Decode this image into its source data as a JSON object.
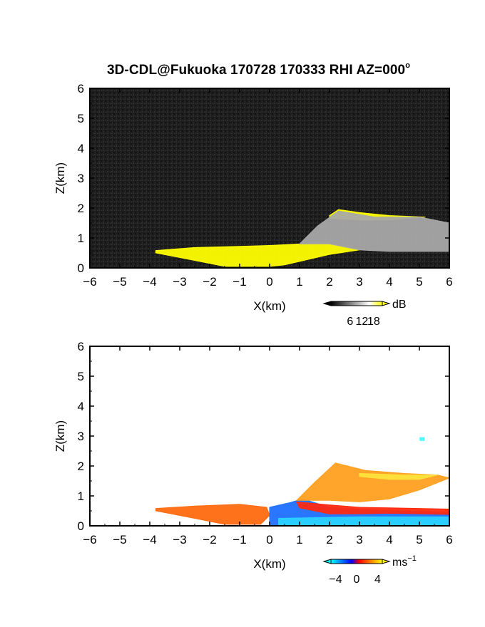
{
  "title": {
    "text": "3D-CDL@Fukuoka 170728 170333 RHI AZ=000",
    "degree_mark": "o"
  },
  "chart_data": [
    {
      "type": "heatmap",
      "panel": "top",
      "quantity": "backscatter intensity",
      "xlabel": "X(km)",
      "ylabel": "Z(km)",
      "xlim": [
        -6,
        6
      ],
      "ylim": [
        0,
        6
      ],
      "x_ticks": [
        -6,
        -5,
        -4,
        -3,
        -2,
        -1,
        0,
        1,
        2,
        3,
        4,
        5,
        6
      ],
      "y_ticks": [
        0,
        1,
        2,
        3,
        4,
        5,
        6
      ],
      "grid": false,
      "background_color": "#1c1c1c",
      "colorbar": {
        "unit": "dB",
        "ticks": [
          6,
          12,
          18
        ],
        "colors": [
          "#000000",
          "#ffffff",
          "#ffff00"
        ]
      },
      "regions": [
        {
          "name": "yellow-strong-echo",
          "color": "#ffff00",
          "polygon_km": [
            [
              -3.8,
              0.58
            ],
            [
              -2.5,
              0.68
            ],
            [
              -1,
              0.72
            ],
            [
              0,
              0.75
            ],
            [
              1,
              0.8
            ],
            [
              2,
              0.8
            ],
            [
              3,
              0.6
            ],
            [
              2,
              0.45
            ],
            [
              0.5,
              0.1
            ],
            [
              0,
              0.05
            ],
            [
              -1.5,
              0.05
            ],
            [
              -2.5,
              0.25
            ],
            [
              -3.8,
              0.5
            ]
          ]
        },
        {
          "name": "yellow-elevated-layer",
          "color": "#ffff00",
          "polygon_km": [
            [
              2,
              1.75
            ],
            [
              2.3,
              1.95
            ],
            [
              3,
              1.85
            ],
            [
              4,
              1.75
            ],
            [
              5.2,
              1.7
            ],
            [
              4,
              1.6
            ],
            [
              3,
              1.6
            ],
            [
              2,
              1.65
            ]
          ]
        },
        {
          "name": "grey-elevated-plume",
          "color": "#a8a8a8",
          "polygon_km": [
            [
              1,
              0.8
            ],
            [
              1.6,
              1.4
            ],
            [
              2.3,
              1.9
            ],
            [
              3.5,
              1.7
            ],
            [
              5,
              1.7
            ],
            [
              6,
              1.5
            ],
            [
              6,
              0.55
            ],
            [
              4,
              0.55
            ],
            [
              3,
              0.6
            ],
            [
              2,
              0.8
            ]
          ]
        }
      ]
    },
    {
      "type": "heatmap",
      "panel": "bottom",
      "quantity": "Doppler velocity",
      "xlabel": "X(km)",
      "ylabel": "Z(km)",
      "xlim": [
        -6,
        6
      ],
      "ylim": [
        0,
        6
      ],
      "x_ticks": [
        -6,
        -5,
        -4,
        -3,
        -2,
        -1,
        0,
        1,
        2,
        3,
        4,
        5,
        6
      ],
      "y_ticks": [
        0,
        1,
        2,
        3,
        4,
        5,
        6
      ],
      "grid": false,
      "background_color": "#ffffff",
      "colorbar": {
        "unit": "ms",
        "unit_exponent": "-1",
        "ticks": [
          -4,
          0,
          4
        ],
        "colors": [
          "#00ffff",
          "#0000ff",
          "#ff0000",
          "#ffff00"
        ]
      },
      "regions": [
        {
          "name": "red-orange-left-wedge",
          "color": "#ff6a10",
          "polygon_km": [
            [
              -3.8,
              0.58
            ],
            [
              -2.5,
              0.66
            ],
            [
              -1,
              0.72
            ],
            [
              -0.1,
              0.62
            ],
            [
              0,
              0.35
            ],
            [
              -0.3,
              0.05
            ],
            [
              -1.5,
              0.05
            ],
            [
              -2.5,
              0.25
            ],
            [
              -3.8,
              0.5
            ]
          ]
        },
        {
          "name": "blue-lower-right",
          "color": "#1e70ff",
          "polygon_km": [
            [
              0,
              0.62
            ],
            [
              0.7,
              0.78
            ],
            [
              1.1,
              0.9
            ],
            [
              2,
              0.62
            ],
            [
              3,
              0.55
            ],
            [
              4,
              0.5
            ],
            [
              5,
              0.48
            ],
            [
              6,
              0.45
            ],
            [
              6,
              0
            ],
            [
              0,
              0
            ]
          ]
        },
        {
          "name": "cyan-near-ground",
          "color": "#2ad2ff",
          "polygon_km": [
            [
              0.3,
              0.25
            ],
            [
              3,
              0.3
            ],
            [
              6,
              0.3
            ],
            [
              6,
              0
            ],
            [
              0.3,
              0
            ]
          ]
        },
        {
          "name": "red-layer",
          "color": "#ff2a10",
          "polygon_km": [
            [
              0.9,
              0.8
            ],
            [
              2,
              0.7
            ],
            [
              3,
              0.62
            ],
            [
              4,
              0.6
            ],
            [
              5,
              0.58
            ],
            [
              6,
              0.56
            ],
            [
              6,
              0.38
            ],
            [
              4,
              0.42
            ],
            [
              3,
              0.4
            ],
            [
              2,
              0.4
            ],
            [
              1,
              0.6
            ]
          ]
        },
        {
          "name": "orange-elevated-plume",
          "color": "#ffa020",
          "polygon_km": [
            [
              0.9,
              0.85
            ],
            [
              1.5,
              1.45
            ],
            [
              2.2,
              2.1
            ],
            [
              3.2,
              1.85
            ],
            [
              4.5,
              1.75
            ],
            [
              5.6,
              1.7
            ],
            [
              6,
              1.6
            ],
            [
              5,
              1.2
            ],
            [
              4,
              0.9
            ],
            [
              3,
              0.8
            ],
            [
              2,
              0.85
            ]
          ]
        },
        {
          "name": "yellow-upper-layer",
          "color": "#ffe23a",
          "polygon_km": [
            [
              3,
              1.75
            ],
            [
              4.5,
              1.7
            ],
            [
              5.6,
              1.7
            ],
            [
              5,
              1.55
            ],
            [
              4,
              1.55
            ],
            [
              3,
              1.65
            ]
          ]
        },
        {
          "name": "cyan-isolated-point",
          "color": "#40ffff",
          "polygon_km": [
            [
              5.02,
              2.85
            ],
            [
              5.16,
              2.85
            ],
            [
              5.16,
              2.95
            ],
            [
              5.02,
              2.95
            ]
          ]
        }
      ]
    }
  ]
}
